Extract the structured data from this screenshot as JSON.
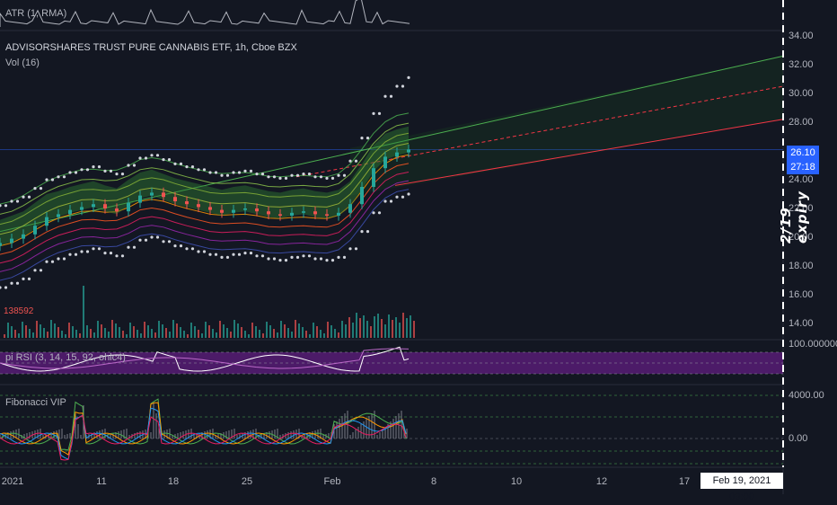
{
  "panes": {
    "atr": {
      "label": "ATR (1, RMA)"
    },
    "main": {
      "title": "ADVISORSHARES TRUST PURE CANNABIS ETF, 1h, Cboe BZX",
      "vol_label": "Vol (16)",
      "low_volume_label": "138592"
    },
    "rsi": {
      "label": "pi RSI (3, 14, 15, 92, ohlc4)",
      "upper_tick": "100.000000"
    },
    "fib": {
      "label": "Fibonacci VIP",
      "ticks": [
        "4000.00",
        "0.00"
      ]
    }
  },
  "annotation": {
    "text": "2/19 expiry"
  },
  "price_badges": [
    {
      "text": "26.10",
      "color": "#2962ff"
    },
    {
      "text": "27:18",
      "color": "#2962ff"
    }
  ],
  "cursor_label": "Feb 19, 2021   09:00",
  "chart_data": {
    "type": "line",
    "title": "ADVISORSHARES TRUST PURE CANNABIS ETF, 1h, Cboe BZX",
    "x_ticks": [
      "2021",
      "11",
      "18",
      "25",
      "Feb",
      "8",
      "10",
      "12",
      "17"
    ],
    "y_ticks": [
      "34.00",
      "32.00",
      "30.00",
      "28.00",
      "26.00",
      "24.00",
      "22.00",
      "20.00",
      "18.00",
      "16.00",
      "14.00"
    ],
    "ylim": [
      13,
      34.5
    ],
    "price_close": [
      19.6,
      19.9,
      20.2,
      20.8,
      21.4,
      21.6,
      21.9,
      22.1,
      22.3,
      22.0,
      21.8,
      22.4,
      22.9,
      23.1,
      22.8,
      22.5,
      22.3,
      22.1,
      21.9,
      21.7,
      21.9,
      22.0,
      21.8,
      21.6,
      21.5,
      21.7,
      21.8,
      21.6,
      21.5,
      21.7,
      22.3,
      23.5,
      24.8,
      25.6,
      25.9,
      26.1
    ],
    "channel": {
      "upper": {
        "start": 20.4,
        "end": 32.6,
        "color": "#4caf50"
      },
      "middle": {
        "start": 24.5,
        "end": 30.5,
        "color": "#f23645",
        "dashed": true
      },
      "lower": {
        "start": 22.4,
        "end": 28.2,
        "color": "#f23645"
      }
    },
    "last_price": 26.1,
    "colors": {
      "up": "#26a69a",
      "down": "#ef5350",
      "band_fill": "#1b5e20",
      "dots": "#d1d4dc",
      "rsi_fill": "#7b1fa2"
    }
  }
}
